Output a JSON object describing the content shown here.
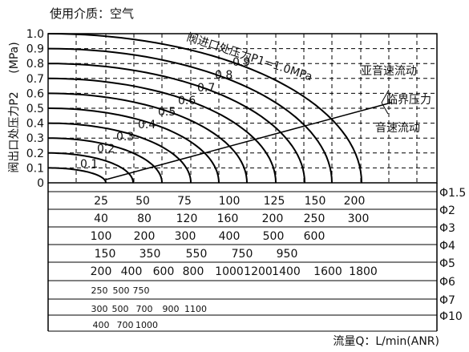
{
  "chart_data": {
    "type": "line",
    "title": "使用介质：空气",
    "ylabel": "阀出口处压力P2",
    "yunit": "(MPa)",
    "xlabel": "流量Q：L/min(ANR)",
    "ylim": [
      0,
      1.0
    ],
    "yticks": [
      "1.0",
      "0.9",
      "0.8",
      "0.7",
      "0.6",
      "0.5",
      "0.4",
      "0.3",
      "0.2",
      "0.1",
      "0"
    ],
    "grid": true,
    "inlet_label": "阀进口处压力P1=1.0MPa",
    "series": [
      {
        "p1": "0.1",
        "p1_value": 0.1
      },
      {
        "p1": "0.2",
        "p1_value": 0.2
      },
      {
        "p1": "0.3",
        "p1_value": 0.3
      },
      {
        "p1": "0.4",
        "p1_value": 0.4
      },
      {
        "p1": "0.5",
        "p1_value": 0.5
      },
      {
        "p1": "0.6",
        "p1_value": 0.6
      },
      {
        "p1": "0.7",
        "p1_value": 0.7
      },
      {
        "p1": "0.8",
        "p1_value": 0.8
      },
      {
        "p1": "0.9",
        "p1_value": 0.9
      },
      {
        "p1": "",
        "p1_value": 1.0
      }
    ],
    "annotations": {
      "subsonic": "亚音速流动",
      "critical": "临界压力",
      "sonic": "音速流动"
    },
    "flow_scales": [
      {
        "diameter": "Φ1.5",
        "ticks": [
          "25",
          "50",
          "75",
          "100",
          "125",
          "150",
          "200"
        ]
      },
      {
        "diameter": "Φ2",
        "ticks": [
          "40",
          "80",
          "120",
          "160",
          "200",
          "250",
          "300"
        ]
      },
      {
        "diameter": "Φ3",
        "ticks": [
          "100",
          "200",
          "300",
          "400",
          "500",
          "600"
        ]
      },
      {
        "diameter": "Φ4",
        "ticks": [
          "150",
          "350",
          "550",
          "750",
          "950"
        ]
      },
      {
        "diameter": "Φ5",
        "ticks": [
          "200",
          "400",
          "600",
          "800",
          "1000",
          "1200",
          "1400",
          "1600",
          "1800"
        ]
      },
      {
        "diameter": "Φ6",
        "ticks": [
          "250",
          "500",
          "750"
        ]
      },
      {
        "diameter": "Φ7",
        "ticks": [
          "300",
          "500",
          "700",
          "900",
          "1100"
        ]
      },
      {
        "diameter": "Φ10",
        "ticks": [
          "400",
          "700",
          "1000"
        ]
      }
    ]
  }
}
